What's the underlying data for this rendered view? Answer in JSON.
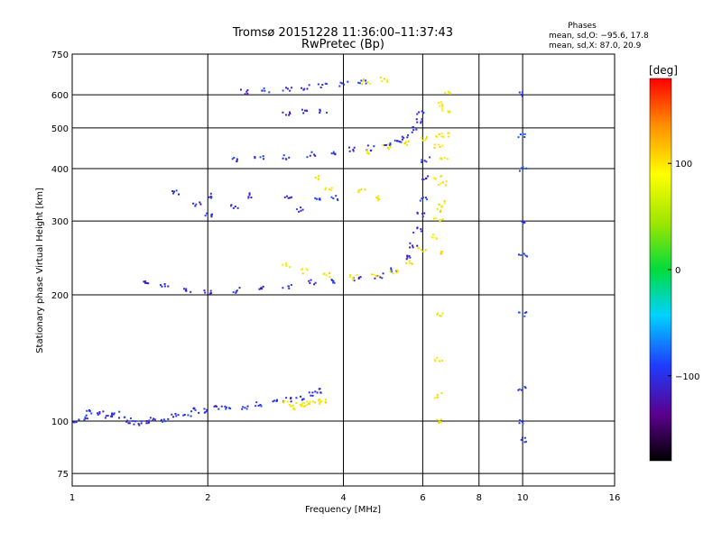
{
  "chart_data": {
    "type": "scatter",
    "title": "Tromsø 20151228 11:36:00–11:37:43",
    "subtitle": "RwPretec (Bp)",
    "stats": {
      "heading": "Phases",
      "line_o": "mean, sd,O:  −95.6, 17.8",
      "line_x": "mean, sd,X:  87.0, 20.9"
    },
    "xlabel": "Frequency [MHz]",
    "ylabel": "Stationary phase Virtual Height [km]",
    "x_scale": "log",
    "y_scale": "log",
    "xlim": [
      1,
      16
    ],
    "ylim": [
      70,
      750
    ],
    "x_ticks": [
      "1",
      "2",
      "4",
      "6",
      "8",
      "10",
      "16"
    ],
    "y_ticks": [
      "750",
      "600",
      "500",
      "400",
      "300",
      "200",
      "100",
      "75"
    ],
    "grid": true,
    "colorbar": {
      "label": "[deg]",
      "range": [
        -180,
        180
      ],
      "ticks": [
        "100",
        "0",
        "−100"
      ]
    },
    "traces": [
      {
        "role": "O-mode E/Es low echoes",
        "phase": -110,
        "points": [
          [
            1.02,
            100
          ],
          [
            1.06,
            102
          ],
          [
            1.1,
            105
          ],
          [
            1.15,
            104
          ],
          [
            1.2,
            103
          ],
          [
            1.25,
            104
          ],
          [
            1.3,
            101
          ],
          [
            1.35,
            100
          ],
          [
            1.4,
            99
          ],
          [
            1.45,
            100
          ],
          [
            1.5,
            101
          ],
          [
            1.6,
            101
          ],
          [
            1.7,
            103
          ],
          [
            1.8,
            104
          ],
          [
            1.9,
            106
          ],
          [
            2.0,
            106
          ],
          [
            2.1,
            107
          ],
          [
            2.2,
            108
          ],
          [
            2.4,
            108
          ],
          [
            2.6,
            110
          ],
          [
            2.8,
            111
          ],
          [
            3.0,
            112
          ],
          [
            3.2,
            113
          ],
          [
            3.4,
            116
          ],
          [
            3.5,
            118
          ]
        ]
      },
      {
        "role": "X-mode low echoes",
        "phase": 95,
        "points": [
          [
            3.0,
            110
          ],
          [
            3.1,
            108
          ],
          [
            3.2,
            109
          ],
          [
            3.3,
            110
          ],
          [
            3.4,
            111
          ],
          [
            3.5,
            112
          ],
          [
            3.6,
            111
          ]
        ]
      },
      {
        "role": "O-mode F trace",
        "phase": -110,
        "points": [
          [
            1.45,
            215
          ],
          [
            1.6,
            210
          ],
          [
            1.8,
            204
          ],
          [
            2.0,
            203
          ],
          [
            2.3,
            205
          ],
          [
            2.6,
            208
          ],
          [
            3.0,
            210
          ],
          [
            3.4,
            214
          ],
          [
            3.8,
            216
          ],
          [
            4.3,
            218
          ],
          [
            4.8,
            222
          ],
          [
            5.2,
            230
          ],
          [
            5.5,
            245
          ],
          [
            5.7,
            262
          ],
          [
            5.85,
            285
          ],
          [
            5.95,
            310
          ],
          [
            6.0,
            340
          ],
          [
            6.05,
            380
          ],
          [
            6.1,
            420
          ]
        ]
      },
      {
        "role": "X-mode F trace",
        "phase": 95,
        "points": [
          [
            3.0,
            235
          ],
          [
            3.3,
            228
          ],
          [
            3.7,
            222
          ],
          [
            4.2,
            220
          ],
          [
            4.7,
            223
          ],
          [
            5.2,
            228
          ],
          [
            5.6,
            238
          ],
          [
            6.0,
            255
          ],
          [
            6.3,
            275
          ],
          [
            6.5,
            300
          ],
          [
            6.6,
            330
          ],
          [
            6.65,
            370
          ],
          [
            6.7,
            420
          ],
          [
            6.72,
            480
          ],
          [
            6.75,
            550
          ],
          [
            6.78,
            610
          ]
        ]
      },
      {
        "role": "O-mode second-hop trace",
        "phase": -110,
        "points": [
          [
            2.3,
            420
          ],
          [
            2.6,
            423
          ],
          [
            3.0,
            427
          ],
          [
            3.4,
            432
          ],
          [
            3.8,
            437
          ],
          [
            4.2,
            443
          ],
          [
            4.6,
            448
          ],
          [
            5.0,
            455
          ],
          [
            5.3,
            463
          ],
          [
            5.5,
            475
          ],
          [
            5.7,
            495
          ],
          [
            5.85,
            520
          ],
          [
            5.95,
            545
          ]
        ]
      },
      {
        "role": "X-mode second-hop trace",
        "phase": 95,
        "points": [
          [
            4.5,
            440
          ],
          [
            5.0,
            450
          ],
          [
            5.5,
            460
          ],
          [
            6.0,
            470
          ],
          [
            6.5,
            480
          ]
        ]
      },
      {
        "role": "O-mode high trace",
        "phase": -110,
        "points": [
          [
            2.4,
            610
          ],
          [
            2.7,
            612
          ],
          [
            3.0,
            618
          ],
          [
            3.3,
            624
          ],
          [
            3.6,
            630
          ],
          [
            4.0,
            637
          ],
          [
            4.4,
            645
          ]
        ]
      },
      {
        "role": "X-mode high trace",
        "phase": 95,
        "points": [
          [
            4.5,
            645
          ],
          [
            4.9,
            650
          ]
        ]
      },
      {
        "role": "O-mode cluster",
        "phase": -110,
        "points": [
          [
            3.0,
            540
          ],
          [
            3.3,
            545
          ],
          [
            3.6,
            548
          ],
          [
            1.7,
            350
          ],
          [
            2.0,
            345
          ],
          [
            2.5,
            345
          ],
          [
            3.0,
            340
          ],
          [
            3.5,
            335
          ],
          [
            3.8,
            340
          ],
          [
            1.9,
            330
          ],
          [
            2.3,
            325
          ],
          [
            3.2,
            320
          ],
          [
            2.0,
            310
          ]
        ]
      },
      {
        "role": "X-mode cluster",
        "phase": 95,
        "points": [
          [
            3.5,
            380
          ],
          [
            3.7,
            360
          ],
          [
            4.4,
            355
          ],
          [
            4.7,
            340
          ]
        ]
      },
      {
        "role": "vertical stripe 6.5 MHz",
        "phase": 95,
        "points": [
          [
            6.5,
            570
          ],
          [
            6.5,
            450
          ],
          [
            6.5,
            380
          ],
          [
            6.5,
            320
          ],
          [
            6.5,
            250
          ],
          [
            6.5,
            180
          ],
          [
            6.5,
            140
          ],
          [
            6.5,
            115
          ],
          [
            6.5,
            100
          ]
        ]
      },
      {
        "role": "vertical stripe 10 MHz",
        "phase": -100,
        "points": [
          [
            10.0,
            600
          ],
          [
            10.0,
            480
          ],
          [
            10.0,
            400
          ],
          [
            10.0,
            300
          ],
          [
            10.0,
            250
          ],
          [
            10.0,
            180
          ],
          [
            10.0,
            120
          ],
          [
            10.0,
            100
          ],
          [
            10.0,
            90
          ]
        ]
      }
    ]
  }
}
